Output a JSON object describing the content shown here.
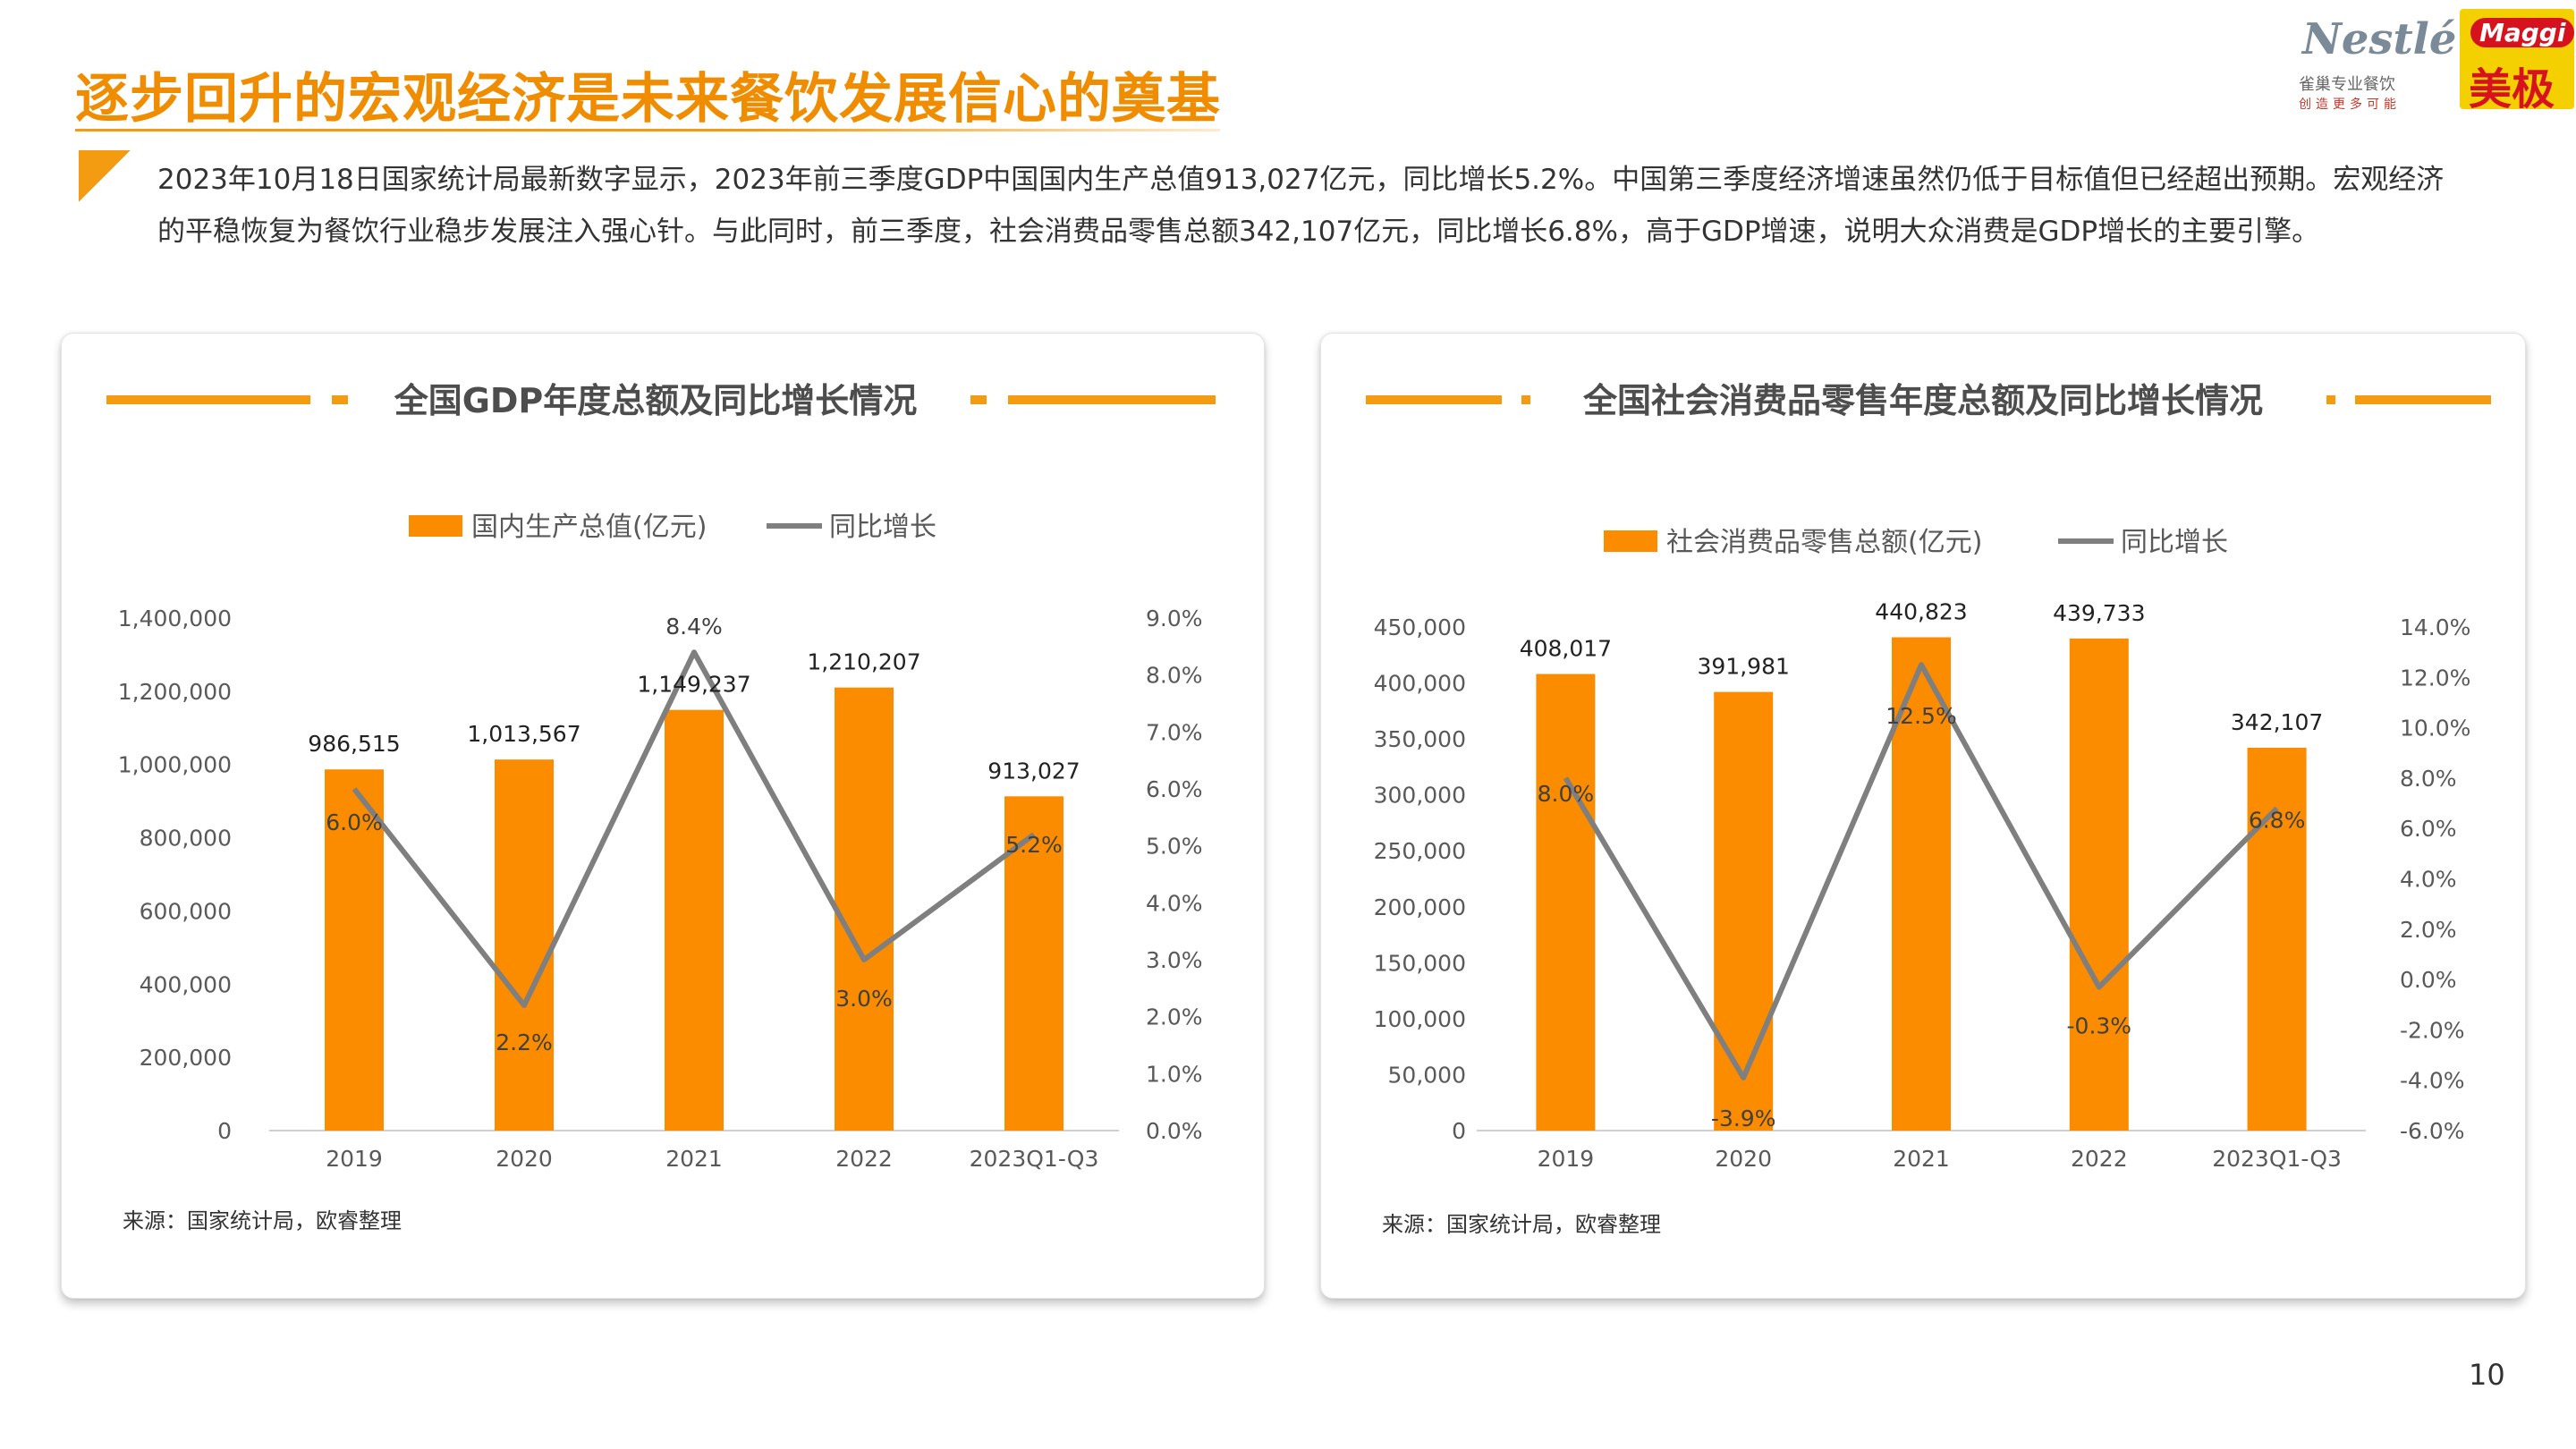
{
  "slide": {
    "title": "逐步回升的宏观经济是未来餐饮发展信心的奠基",
    "intro": "2023年10月18日国家统计局最新数字显示，2023年前三季度GDP中国国内生产总值913,027亿元，同比增长5.2%。中国第三季度经济增速虽然仍低于目标值但已经超出预期。宏观经济的平稳恢复为餐饮行业稳步发展注入强心针。与此同时，前三季度，社会消费品零售总额342,107亿元，同比增长6.8%，高于GDP增速，说明大众消费是GDP增长的主要引擎。",
    "page_number": "10",
    "accent_color": "#f39c12"
  },
  "logos": {
    "nestle_brand": "Nestlé",
    "nestle_sub": "雀巢专业餐饮",
    "nestle_slogan": "创造更多可能",
    "maggi_label": "Maggi",
    "maggi_chinese": "美极"
  },
  "chart_data": [
    {
      "type": "bar",
      "title": "全国GDP年度总额及同比增长情况",
      "categories": [
        "2019",
        "2020",
        "2021",
        "2022",
        "2023Q1-Q3"
      ],
      "series": [
        {
          "name": "国内生产总值(亿元)",
          "type": "bar",
          "axis": "left",
          "color": "#fb8c00",
          "values": [
            986515,
            1013567,
            1149237,
            1210207,
            913027
          ],
          "labels": [
            "986,515",
            "1,013,567",
            "1,149,237",
            "1,210,207",
            "913,027"
          ]
        },
        {
          "name": "同比增长",
          "type": "line",
          "axis": "right",
          "color": "#7f7f7f",
          "values": [
            6.0,
            2.2,
            8.4,
            3.0,
            5.2
          ],
          "labels": [
            "6.0%",
            "2.2%",
            "8.4%",
            "3.0%",
            "5.2%"
          ]
        }
      ],
      "left_axis": {
        "min": 0,
        "max": 1400000,
        "ticks": [
          "0",
          "200,000",
          "400,000",
          "600,000",
          "800,000",
          "1,000,000",
          "1,200,000",
          "1,400,000"
        ]
      },
      "right_axis": {
        "min": 0,
        "max": 9,
        "ticks": [
          "0.0%",
          "1.0%",
          "2.0%",
          "3.0%",
          "4.0%",
          "5.0%",
          "6.0%",
          "7.0%",
          "8.0%",
          "9.0%"
        ]
      },
      "legend_position": "top",
      "grid": false,
      "source": "来源：国家统计局，欧睿整理"
    },
    {
      "type": "bar",
      "title": "全国社会消费品零售年度总额及同比增长情况",
      "categories": [
        "2019",
        "2020",
        "2021",
        "2022",
        "2023Q1-Q3"
      ],
      "series": [
        {
          "name": "社会消费品零售总额(亿元)",
          "type": "bar",
          "axis": "left",
          "color": "#fb8c00",
          "values": [
            408017,
            391981,
            440823,
            439733,
            342107
          ],
          "labels": [
            "408,017",
            "391,981",
            "440,823",
            "439,733",
            "342,107"
          ]
        },
        {
          "name": "同比增长",
          "type": "line",
          "axis": "right",
          "color": "#7f7f7f",
          "values": [
            8.0,
            -3.9,
            12.5,
            -0.3,
            6.8
          ],
          "labels": [
            "8.0%",
            "-3.9%",
            "12.5%",
            "-0.3%",
            "6.8%"
          ]
        }
      ],
      "left_axis": {
        "min": 0,
        "max": 450000,
        "ticks": [
          "0",
          "50,000",
          "100,000",
          "150,000",
          "200,000",
          "250,000",
          "300,000",
          "350,000",
          "400,000",
          "450,000"
        ]
      },
      "right_axis": {
        "min": -6,
        "max": 14,
        "ticks": [
          "-6.0%",
          "-4.0%",
          "-2.0%",
          "0.0%",
          "2.0%",
          "4.0%",
          "6.0%",
          "8.0%",
          "10.0%",
          "12.0%",
          "14.0%"
        ]
      },
      "legend_position": "top",
      "grid": false,
      "source": "来源：国家统计局，欧睿整理"
    }
  ]
}
